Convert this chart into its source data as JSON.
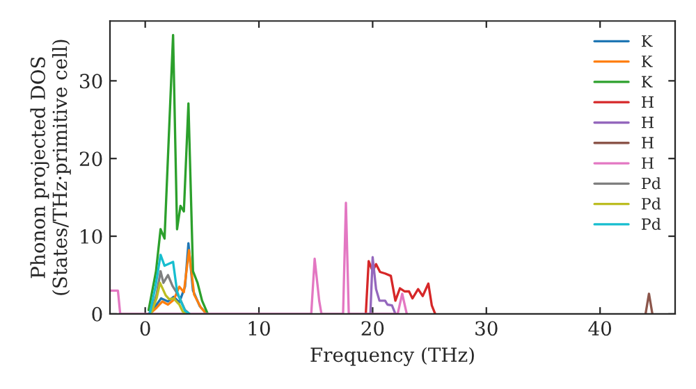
{
  "chart_data": {
    "type": "line",
    "xlabel": "Frequency (THz)",
    "ylabel": "Phonon projected DOS\n(States/THz·primitive cell)",
    "xlim": [
      -3.1,
      46.6
    ],
    "ylim": [
      0,
      37.7
    ],
    "xticks": [
      0,
      10,
      20,
      30,
      40
    ],
    "yticks": [
      0,
      10,
      20,
      30
    ],
    "grid": false,
    "legend": "top right",
    "line_style": "solid",
    "series": [
      {
        "name": "K",
        "color": "#1f77b4",
        "x": [
          0.3,
          0.9,
          1.4,
          2.0,
          2.5,
          3.0,
          3.5,
          3.8,
          4.2,
          4.8,
          5.4
        ],
        "values": [
          0,
          1.0,
          2.0,
          1.6,
          2.2,
          1.5,
          3.5,
          9.1,
          3.0,
          1.0,
          0
        ]
      },
      {
        "name": "K",
        "color": "#ff7f0e",
        "x": [
          0.4,
          1.0,
          1.5,
          2.0,
          2.5,
          3.0,
          3.4,
          3.85,
          4.3,
          4.9,
          5.4
        ],
        "values": [
          0,
          0.8,
          1.6,
          1.2,
          1.8,
          3.5,
          2.8,
          8.2,
          2.5,
          0.8,
          0
        ]
      },
      {
        "name": "K",
        "color": "#2ca02c",
        "x": [
          0.3,
          0.95,
          1.35,
          1.7,
          2.45,
          2.8,
          3.1,
          3.4,
          3.8,
          4.2,
          4.6,
          5.0,
          5.5
        ],
        "values": [
          0.5,
          5.5,
          10.9,
          9.7,
          35.9,
          10.9,
          13.9,
          13.2,
          27.1,
          5.5,
          4.0,
          1.7,
          0
        ]
      },
      {
        "name": "H",
        "color": "#d62728",
        "x": [
          19.4,
          19.65,
          20.0,
          20.3,
          20.65,
          21.1,
          21.6,
          22.0,
          22.4,
          22.8,
          23.2,
          23.5,
          24.0,
          24.4,
          24.9,
          25.2,
          25.5
        ],
        "values": [
          0,
          6.8,
          5.5,
          6.4,
          5.4,
          5.2,
          4.9,
          1.7,
          3.3,
          2.9,
          2.9,
          2.0,
          3.2,
          2.3,
          3.9,
          1.1,
          0
        ]
      },
      {
        "name": "H",
        "color": "#9467bd",
        "x": [
          19.8,
          20.0,
          20.3,
          20.6,
          21.1,
          21.3,
          21.7,
          22.0
        ],
        "values": [
          0,
          7.3,
          3.2,
          1.7,
          1.7,
          1.2,
          1.1,
          0
        ]
      },
      {
        "name": "H",
        "color": "#8c564b",
        "x": [
          44.0,
          44.3,
          44.6
        ],
        "values": [
          0,
          2.6,
          0
        ]
      },
      {
        "name": "H",
        "color": "#e377c2",
        "x": [
          -3.1,
          -2.4,
          -2.2,
          14.6,
          14.9,
          15.3,
          15.5,
          17.4,
          17.65,
          17.9,
          22.2,
          22.6,
          23.0
        ],
        "values": [
          3.0,
          3.0,
          0,
          0,
          7.1,
          1.7,
          0,
          0,
          14.3,
          0,
          0,
          2.6,
          0
        ]
      },
      {
        "name": "Pd",
        "color": "#7f7f7f",
        "x": [
          0.5,
          1.0,
          1.35,
          1.6,
          2.0,
          2.4,
          2.7,
          3.1,
          3.5,
          3.9
        ],
        "values": [
          0,
          2.5,
          5.5,
          4.0,
          5.0,
          3.6,
          2.9,
          1.8,
          0.5,
          0
        ]
      },
      {
        "name": "Pd",
        "color": "#bcbd22",
        "x": [
          0.5,
          1.0,
          1.3,
          1.8,
          2.1,
          2.5,
          3.0,
          3.3,
          3.7
        ],
        "values": [
          0,
          2.0,
          4.0,
          2.4,
          1.9,
          2.0,
          1.2,
          0.3,
          0
        ]
      },
      {
        "name": "Pd",
        "color": "#17becf",
        "x": [
          0.4,
          0.9,
          1.35,
          1.7,
          2.45,
          2.8,
          3.2,
          3.5,
          3.9
        ],
        "values": [
          0,
          3.5,
          7.6,
          6.2,
          6.7,
          2.9,
          1.4,
          0.4,
          0
        ]
      }
    ]
  }
}
